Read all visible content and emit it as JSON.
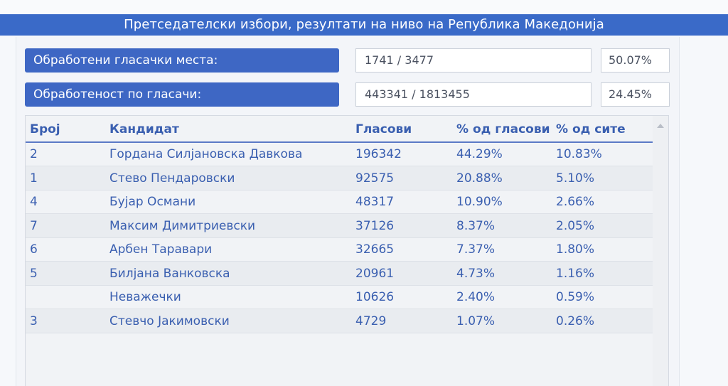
{
  "title": "Претседателски избори, резултати на ниво на Република Македонија",
  "stats": [
    {
      "label": "Обработени гласачки места:",
      "value": "1741 / 3477",
      "pct": "50.07%"
    },
    {
      "label": "Обработеност по гласачи:",
      "value": "443341 / 1813455",
      "pct": "24.45%"
    }
  ],
  "table": {
    "headers": {
      "num": "Број",
      "candidate": "Кандидат",
      "votes": "Гласови",
      "pct_votes": "% од гласови",
      "pct_all": "% од сите"
    },
    "rows": [
      {
        "num": "2",
        "candidate": "Гордана Силјановска Давкова",
        "votes": "196342",
        "pct_votes": "44.29%",
        "pct_all": "10.83%"
      },
      {
        "num": "1",
        "candidate": "Стево Пендаровски",
        "votes": "92575",
        "pct_votes": "20.88%",
        "pct_all": "5.10%"
      },
      {
        "num": "4",
        "candidate": "Бујар Османи",
        "votes": "48317",
        "pct_votes": "10.90%",
        "pct_all": "2.66%"
      },
      {
        "num": "7",
        "candidate": "Максим Димитриевски",
        "votes": "37126",
        "pct_votes": "8.37%",
        "pct_all": "2.05%"
      },
      {
        "num": "6",
        "candidate": "Арбен Таравари",
        "votes": "32665",
        "pct_votes": "7.37%",
        "pct_all": "1.80%"
      },
      {
        "num": "5",
        "candidate": "Билјана Ванковска",
        "votes": "20961",
        "pct_votes": "4.73%",
        "pct_all": "1.16%"
      },
      {
        "num": "",
        "candidate": "Неважечки",
        "votes": "10626",
        "pct_votes": "2.40%",
        "pct_all": "0.59%"
      },
      {
        "num": "3",
        "candidate": "Стевчо Јакимовски",
        "votes": "4729",
        "pct_votes": "1.07%",
        "pct_all": "0.26%"
      }
    ]
  },
  "icons": {
    "scroll_up": "chevron-up-icon"
  },
  "colors": {
    "accent": "#3e67c4",
    "text": "#3a5fb0"
  }
}
